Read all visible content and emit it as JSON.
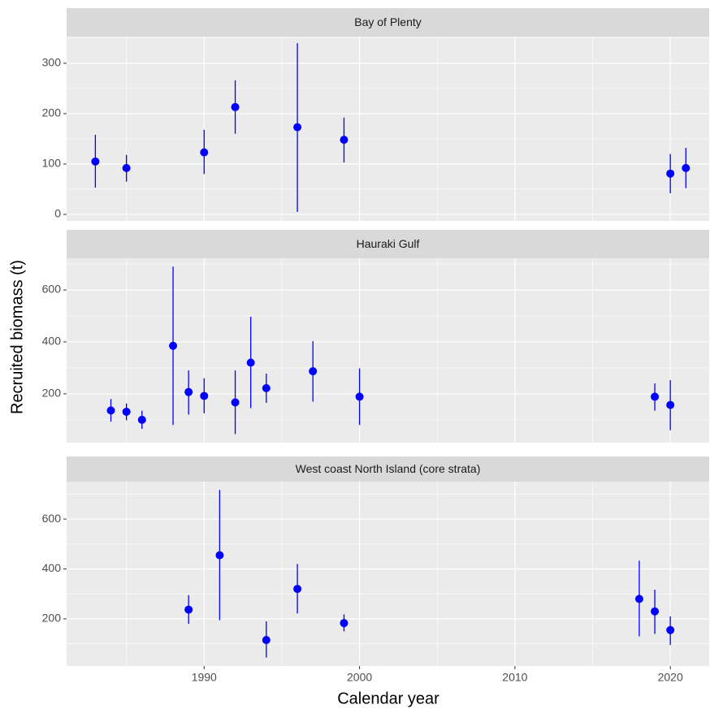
{
  "chart_data": {
    "type": "errorbar",
    "xlabel": "Calendar year",
    "ylabel": "Recruited biomass (t)",
    "color": "#0000ff",
    "grid": true,
    "xlim": [
      1981.15,
      2022.5
    ],
    "xticks": [
      1990,
      2000,
      2010,
      2020
    ],
    "facets": [
      {
        "title": "Bay of Plenty",
        "x": [
          1983,
          1985,
          1990,
          1992,
          1996,
          1999,
          2020,
          2021
        ],
        "values": [
          105,
          92,
          123,
          213,
          173,
          148,
          81,
          92
        ],
        "lower": [
          53,
          65,
          80,
          160,
          5,
          103,
          42,
          52
        ],
        "upper": [
          158,
          118,
          168,
          266,
          340,
          192,
          120,
          132
        ],
        "ylim": [
          -13,
          353
        ],
        "yticks": [
          0,
          100,
          200,
          300
        ]
      },
      {
        "title": "Hauraki Gulf",
        "x": [
          1984,
          1985,
          1986,
          1988,
          1989,
          1990,
          1992,
          1993,
          1994,
          1997,
          2000,
          2019,
          2020
        ],
        "values": [
          136,
          131,
          100,
          385,
          207,
          192,
          167,
          320,
          222,
          287,
          189,
          189,
          157
        ],
        "lower": [
          93,
          98,
          65,
          80,
          120,
          125,
          45,
          145,
          165,
          170,
          80,
          135,
          60
        ],
        "upper": [
          180,
          163,
          135,
          690,
          290,
          260,
          290,
          497,
          278,
          403,
          298,
          240,
          253
        ],
        "ylim": [
          12,
          722
        ],
        "yticks": [
          200,
          400,
          600
        ]
      },
      {
        "title": "West coast North Island (core strata)",
        "x": [
          1989,
          1991,
          1994,
          1996,
          1999,
          2018,
          2019,
          2020
        ],
        "values": [
          237,
          455,
          115,
          320,
          183,
          280,
          230,
          155
        ],
        "lower": [
          180,
          195,
          45,
          222,
          150,
          130,
          140,
          95
        ],
        "upper": [
          295,
          717,
          190,
          420,
          218,
          433,
          317,
          210
        ],
        "ylim": [
          11,
          750
        ],
        "yticks": [
          200,
          400,
          600
        ]
      }
    ]
  }
}
